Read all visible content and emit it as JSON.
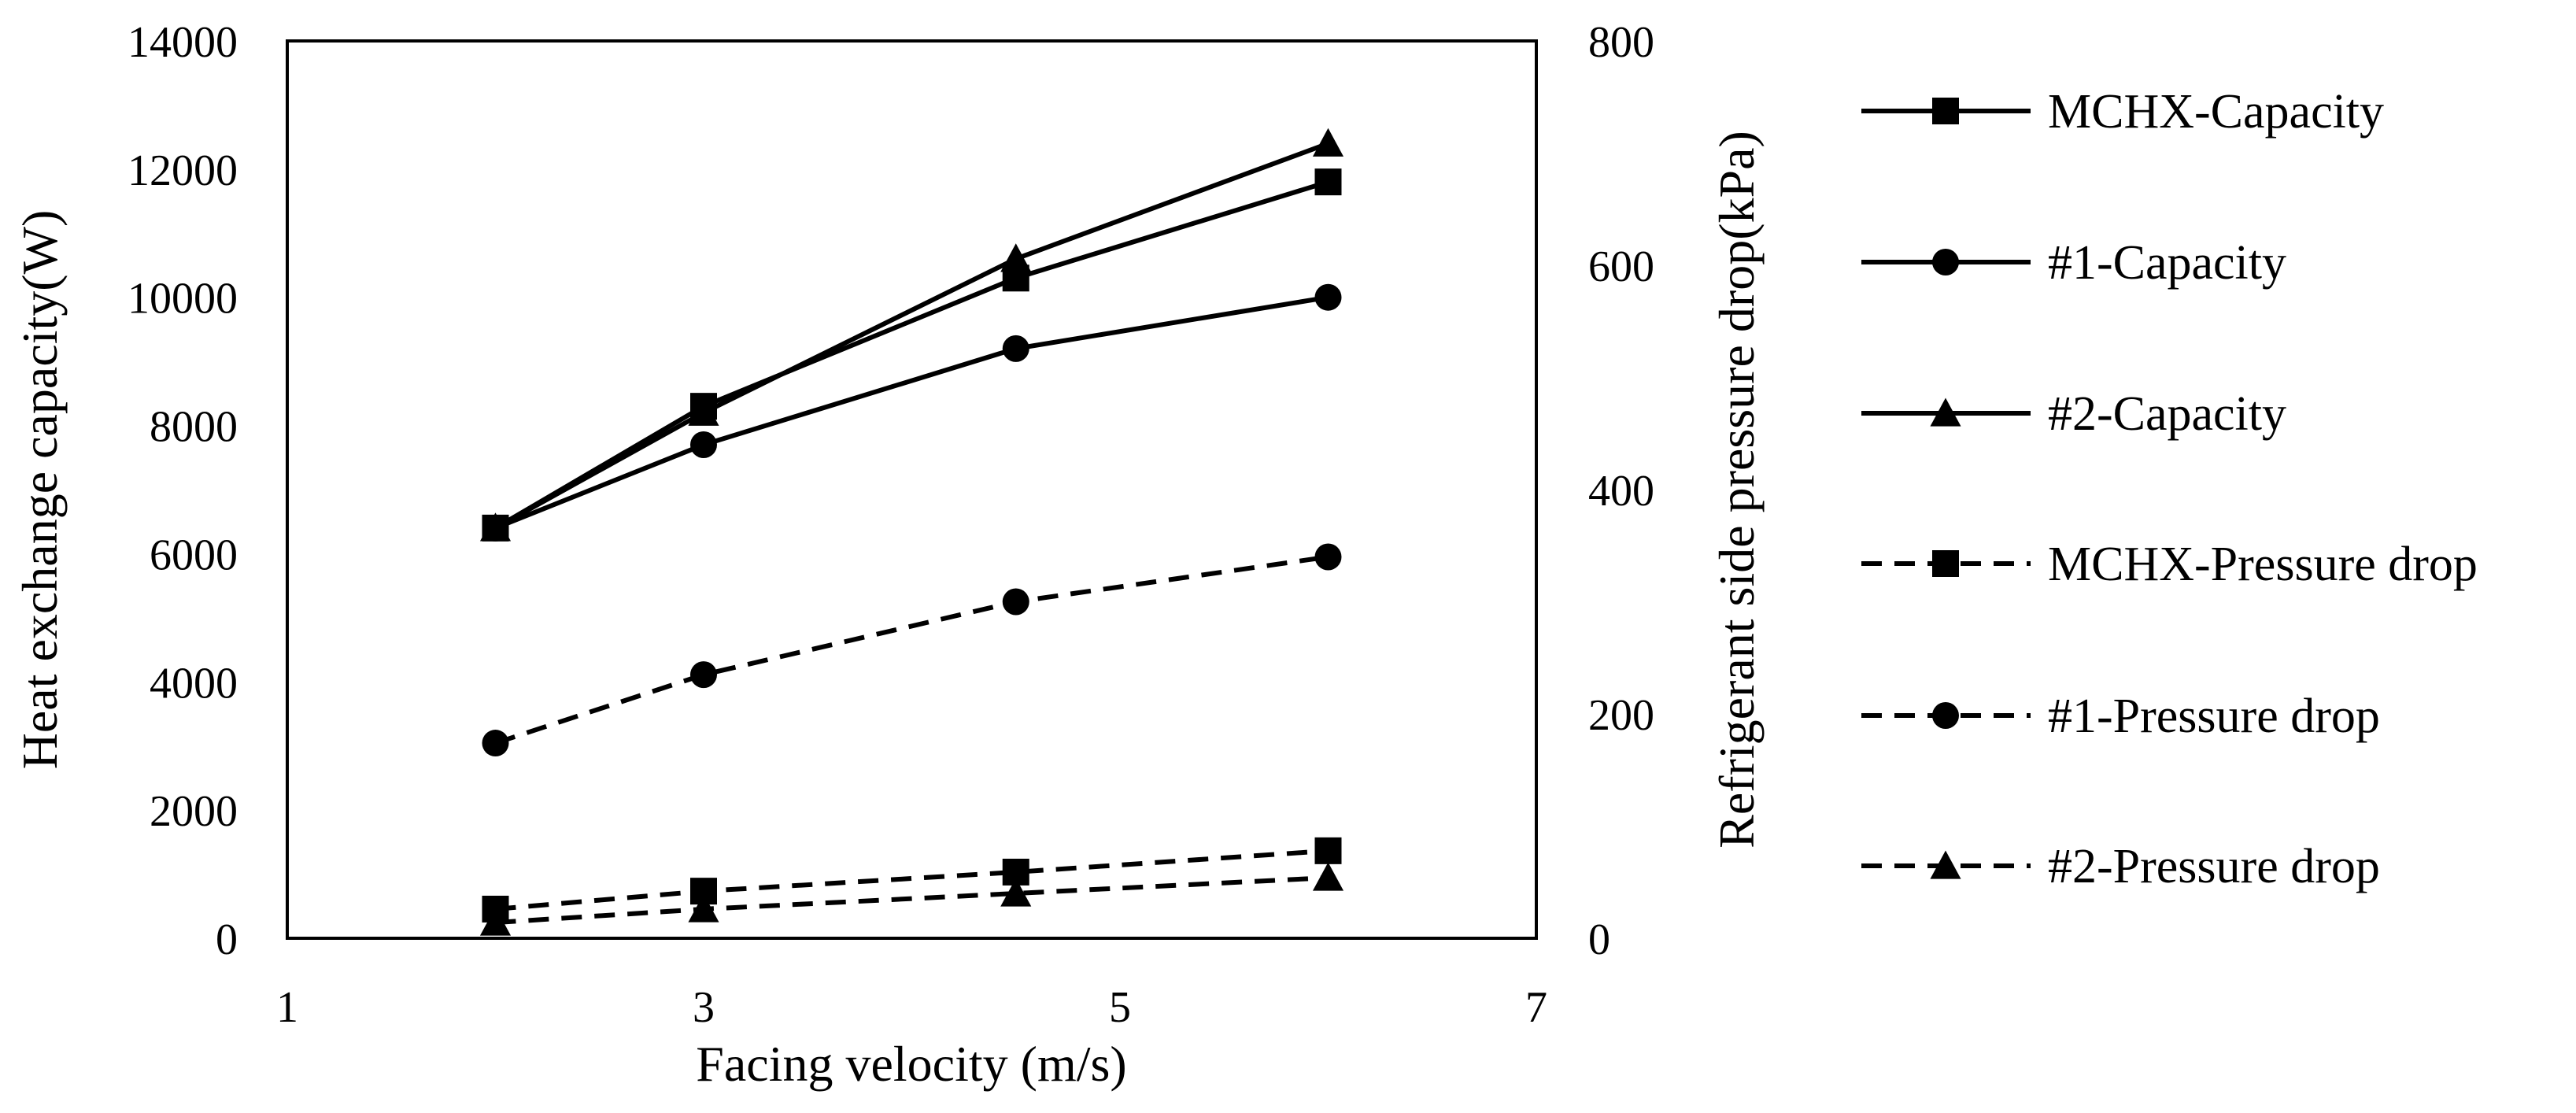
{
  "chart_data": {
    "type": "line",
    "title": "",
    "xlabel": "Facing velocity (m/s)",
    "ylabel": "Heat exchange capacity(W)",
    "y2label": "Refrigerant side pressure drop(kPa)",
    "xlim": [
      1,
      7
    ],
    "ylim": [
      0,
      14000
    ],
    "y2lim": [
      0,
      800
    ],
    "x_ticks": [
      "1",
      "3",
      "5",
      "7"
    ],
    "y_ticks": [
      "0",
      "2000",
      "4000",
      "6000",
      "8000",
      "10000",
      "12000",
      "14000"
    ],
    "y2_ticks": [
      "0",
      "200",
      "400",
      "600",
      "800"
    ],
    "grid": false,
    "legend_position": "right",
    "series": [
      {
        "name": "MCHX-Capacity",
        "axis": "left",
        "marker": "square",
        "dash": "solid",
        "x": [
          2,
          3,
          4.5,
          6
        ],
        "values": [
          6400,
          8300,
          10300,
          11800
        ]
      },
      {
        "name": "#1-Capacity",
        "axis": "left",
        "marker": "circle",
        "dash": "solid",
        "x": [
          2,
          3,
          4.5,
          6
        ],
        "values": [
          6400,
          7700,
          9200,
          10000
        ]
      },
      {
        "name": "#2-Capacity",
        "axis": "left",
        "marker": "triangle",
        "dash": "solid",
        "x": [
          2,
          3,
          4.5,
          6
        ],
        "values": [
          6400,
          8200,
          10600,
          12400
        ]
      },
      {
        "name": "MCHX-Pressure drop",
        "axis": "right",
        "marker": "square",
        "dash": "dashed",
        "x": [
          2,
          3,
          4.5,
          6
        ],
        "values": [
          26,
          42,
          59,
          78
        ]
      },
      {
        "name": "#1-Pressure drop",
        "axis": "right",
        "marker": "circle",
        "dash": "dashed",
        "x": [
          2,
          3,
          4.5,
          6
        ],
        "values": [
          174,
          235,
          300,
          340
        ]
      },
      {
        "name": "#2-Pressure drop",
        "axis": "right",
        "marker": "triangle",
        "dash": "dashed",
        "x": [
          2,
          3,
          4.5,
          6
        ],
        "values": [
          14,
          26,
          40,
          54
        ]
      }
    ]
  }
}
